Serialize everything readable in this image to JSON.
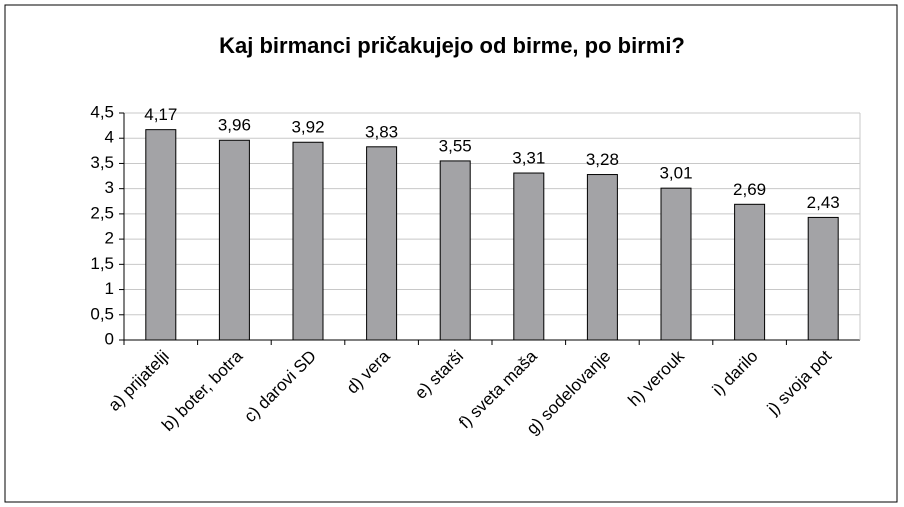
{
  "chart_data": {
    "type": "bar",
    "title": "Kaj birmanci pričakujejo od birme, po birmi?",
    "categories": [
      "a) prijatelji",
      "b) boter, botra",
      "c) darovi SD",
      "d) vera",
      "e) starši",
      "f) sveta maša",
      "g) sodelovanje",
      "h) verouk",
      "i) darilo",
      "j) svoja pot"
    ],
    "values": [
      4.17,
      3.96,
      3.92,
      3.83,
      3.55,
      3.31,
      3.28,
      3.01,
      2.69,
      2.43
    ],
    "value_labels": [
      "4,17",
      "3,96",
      "3,92",
      "3,83",
      "3,55",
      "3,31",
      "3,28",
      "3,01",
      "2,69",
      "2,43"
    ],
    "color": "#a3a3a6",
    "ylim": [
      0,
      4.5
    ],
    "yticks": [
      0,
      {
        "value": 0.5,
        "label": "0,5"
      },
      1,
      {
        "value": 1.5,
        "label": "1,5"
      },
      2,
      {
        "value": 2.5,
        "label": "2,5"
      },
      3,
      {
        "value": 3.5,
        "label": "3,5"
      },
      4,
      {
        "value": 4.5,
        "label": "4,5"
      }
    ],
    "grid": true
  }
}
